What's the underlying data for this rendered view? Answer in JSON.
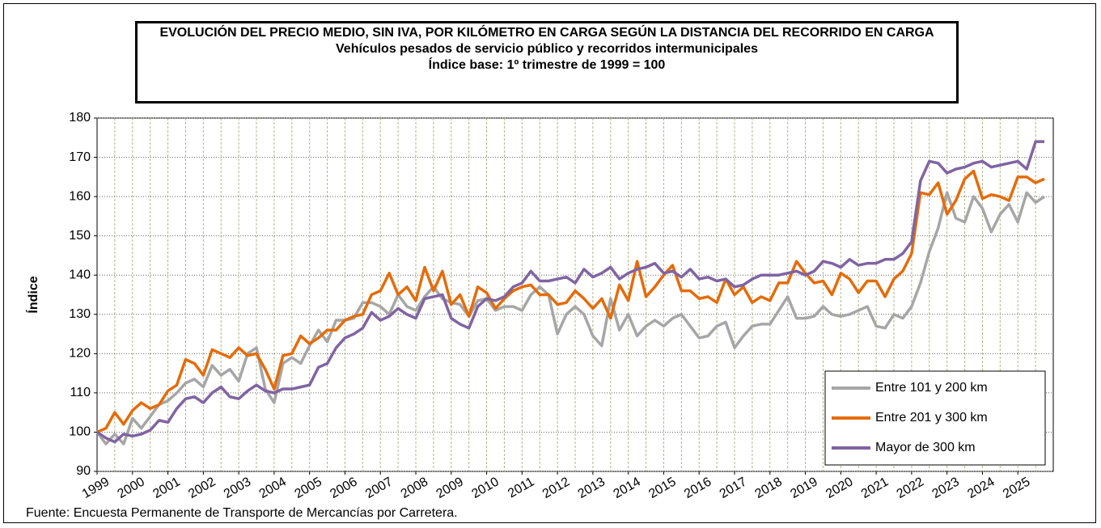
{
  "chart_data": {
    "type": "line",
    "title": "EVOLUCIÓN DEL PRECIO MEDIO, SIN IVA, POR KILÓMETRO EN CARGA SEGÚN LA DISTANCIA DEL RECORRIDO EN CARGA",
    "subtitle": [
      "Vehículos pesados de servicio público y recorridos intermunicipales",
      "Índice base: 1º trimestre de 1999 = 100"
    ],
    "y_label": "Índice",
    "source": "Fuente: Encuesta Permanente de Transporte de Mercancías por Carretera.",
    "categories": [
      "1999",
      null,
      null,
      null,
      "2000",
      null,
      null,
      null,
      "2001",
      null,
      null,
      null,
      "2002",
      null,
      null,
      null,
      "2003",
      null,
      null,
      null,
      "2004",
      null,
      null,
      null,
      "2005",
      null,
      null,
      null,
      "2006",
      null,
      null,
      null,
      "2007",
      null,
      null,
      null,
      "2008",
      null,
      null,
      null,
      "2009",
      null,
      null,
      null,
      "2010",
      null,
      null,
      null,
      "2011",
      null,
      null,
      null,
      "2012",
      null,
      null,
      null,
      "2013",
      null,
      null,
      null,
      "2014",
      null,
      null,
      null,
      "2015",
      null,
      null,
      null,
      "2016",
      null,
      null,
      null,
      "2017",
      null,
      null,
      null,
      "2018",
      null,
      null,
      null,
      "2019",
      null,
      null,
      null,
      "2020",
      null,
      null,
      null,
      "2021",
      null,
      null,
      null,
      "2022",
      null,
      null,
      null,
      "2023",
      null,
      null,
      null,
      "2024",
      null,
      null,
      null,
      "2025",
      null,
      null,
      null
    ],
    "series": [
      {
        "name": "Entre 101 y 200 km",
        "color": "#a6a6a6",
        "values": [
          100,
          97,
          99.5,
          97,
          103.5,
          101,
          104,
          107,
          108,
          110,
          112.5,
          113.5,
          111.5,
          117,
          114.5,
          116,
          113,
          120,
          121.5,
          111,
          107.5,
          117.5,
          119,
          117.5,
          122,
          126,
          123,
          128.5,
          128.5,
          129,
          133,
          133,
          132,
          130,
          135,
          132,
          131,
          134.5,
          137,
          134,
          133,
          132.5,
          129.5,
          133.5,
          134,
          131,
          132,
          132,
          131,
          135,
          137,
          135,
          125,
          130,
          132,
          130,
          124.5,
          122,
          134,
          126,
          130,
          124.5,
          127,
          128.5,
          127,
          129,
          130,
          127,
          124,
          124.5,
          127,
          128,
          121.5,
          124.5,
          127,
          127.5,
          127.5,
          131,
          134.5,
          129,
          129,
          129.5,
          132,
          130,
          129.5,
          130,
          131,
          132,
          127,
          126.5,
          130,
          129,
          132,
          138,
          146,
          152,
          161,
          154.5,
          153.5,
          160,
          157,
          151,
          155.5,
          158,
          153.5,
          161,
          158.5,
          160
        ]
      },
      {
        "name": "Entre 201 y 300 km",
        "color": "#e46c0a",
        "values": [
          100,
          101,
          105,
          102,
          105.5,
          107.5,
          106,
          107,
          110.5,
          112,
          118.5,
          117.5,
          114.5,
          121,
          120,
          119,
          121.5,
          119.5,
          120,
          116,
          111,
          119.5,
          120,
          124.5,
          122.5,
          124,
          126,
          126,
          128.5,
          129.5,
          130,
          135,
          136,
          140.5,
          135,
          137,
          133.5,
          142,
          136,
          141,
          132.5,
          135,
          129.5,
          137,
          135.5,
          131.5,
          134,
          136,
          137,
          137.5,
          135,
          135,
          132.5,
          133,
          136,
          134,
          131.5,
          134,
          129,
          137.5,
          133.5,
          143.5,
          134.5,
          137,
          140,
          142.5,
          136,
          136,
          134,
          134.5,
          133,
          139,
          135,
          137,
          133,
          134.5,
          133.5,
          138,
          138,
          143.5,
          140.5,
          138,
          138.5,
          135,
          140.5,
          139,
          135.5,
          138.5,
          138.5,
          134.5,
          139,
          141,
          145.5,
          161,
          160.5,
          163.5,
          155.5,
          159,
          164.5,
          166.5,
          159.5,
          160.5,
          160,
          159,
          165,
          165,
          163.5,
          164.5
        ]
      },
      {
        "name": "Mayor de 300 km",
        "color": "#8064a2",
        "values": [
          100,
          98.5,
          97.5,
          99.5,
          99,
          99.5,
          100.5,
          103,
          102.5,
          106,
          108.5,
          109,
          107.5,
          110,
          111.5,
          109,
          108.5,
          110.5,
          112,
          110.5,
          110,
          111,
          111,
          111.5,
          112,
          116.5,
          117.5,
          121.5,
          124,
          125,
          126.5,
          130.5,
          128.5,
          129.5,
          131.5,
          130,
          129,
          134,
          134.5,
          135,
          129,
          127.5,
          126.5,
          132,
          134,
          133.5,
          134.5,
          137,
          138,
          141,
          138.5,
          138.5,
          139,
          139.5,
          138,
          141.5,
          139.5,
          140.5,
          142,
          139,
          140.5,
          141.5,
          142,
          143,
          140.5,
          141,
          139.5,
          141.5,
          139,
          139.5,
          138.5,
          139,
          137,
          137.5,
          139,
          140,
          140,
          140,
          140.5,
          141,
          140,
          141,
          143.5,
          143,
          142,
          144,
          142.5,
          143,
          143,
          144,
          144,
          145.5,
          148.5,
          164,
          169,
          168.5,
          166,
          167,
          167.5,
          168.5,
          169,
          167.5,
          168,
          168.5,
          169,
          167,
          174,
          174
        ]
      }
    ],
    "ylim": [
      90,
      180
    ],
    "yticks": [
      90,
      100,
      110,
      120,
      130,
      140,
      150,
      160,
      170,
      180
    ],
    "grid": true,
    "legend": "lower right"
  }
}
